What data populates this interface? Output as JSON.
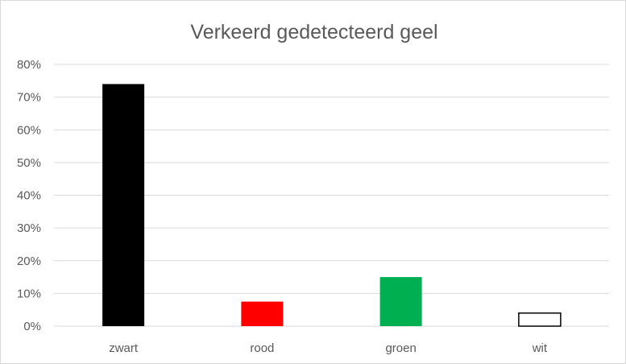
{
  "chart_data": {
    "type": "bar",
    "title": "Verkeerd gedetecteerd geel",
    "categories": [
      "zwart",
      "rood",
      "groen",
      "wit"
    ],
    "values": [
      74,
      7.5,
      15,
      4
    ],
    "bar_colors": [
      "#000000",
      "#ff0000",
      "#00b050",
      "#ffffff"
    ],
    "bar_stroke": [
      "#000000",
      "#ff0000",
      "#00b050",
      "#000000"
    ],
    "ylim": [
      0,
      80
    ],
    "yticks": [
      {
        "value": 0,
        "label": "0%"
      },
      {
        "value": 10,
        "label": "10%"
      },
      {
        "value": 20,
        "label": "20%"
      },
      {
        "value": 30,
        "label": "30%"
      },
      {
        "value": 40,
        "label": "40%"
      },
      {
        "value": 50,
        "label": "50%"
      },
      {
        "value": 60,
        "label": "60%"
      },
      {
        "value": 70,
        "label": "70%"
      },
      {
        "value": 80,
        "label": "80%"
      }
    ],
    "grid": true,
    "legend": "none"
  }
}
